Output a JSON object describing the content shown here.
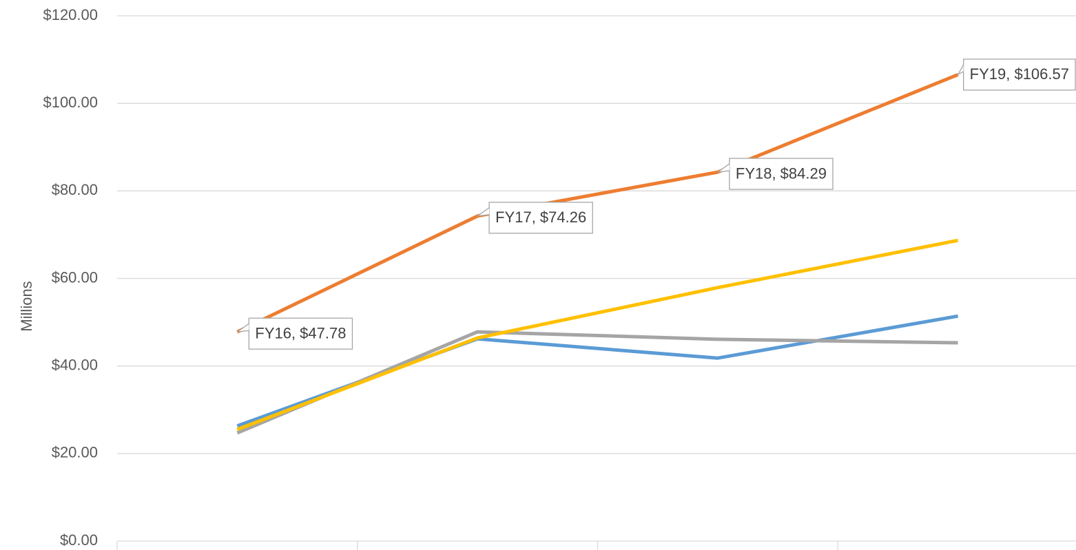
{
  "chart_data": {
    "type": "line",
    "y_label": "Millions",
    "categories": [
      null,
      null,
      null,
      null
    ],
    "series": [
      {
        "color": "#5b9bd5",
        "values": [
          26.3,
          46.2,
          41.8,
          51.4
        ]
      },
      {
        "color": "#ed7d31",
        "values": [
          47.78,
          74.26,
          84.29,
          106.57
        ],
        "value_labels": [
          "FY16, $47.78",
          "FY17, $74.26",
          "FY18, $84.29",
          "FY19, $106.57"
        ]
      },
      {
        "color": "#a5a5a5",
        "values": [
          24.7,
          47.8,
          46.1,
          45.3
        ]
      },
      {
        "color": "#ffc000",
        "values": [
          25.5,
          46.4,
          57.9,
          68.7
        ]
      }
    ],
    "ylim": [
      0,
      120
    ],
    "yticks": [
      {
        "value": 0,
        "label": "$0.00"
      },
      {
        "value": 20,
        "label": "$20.00"
      },
      {
        "value": 40,
        "label": "$40.00"
      },
      {
        "value": 60,
        "label": "$60.00"
      },
      {
        "value": 80,
        "label": "$80.00"
      },
      {
        "value": 100,
        "label": "$100.00"
      },
      {
        "value": 120,
        "label": "$120.00"
      }
    ],
    "grid": true
  }
}
